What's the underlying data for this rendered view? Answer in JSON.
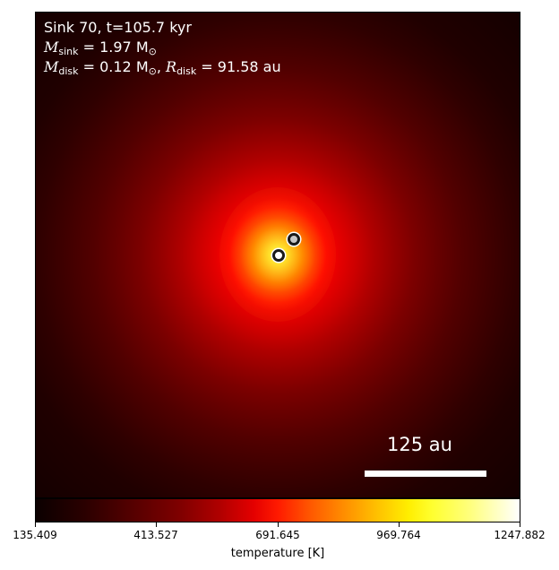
{
  "info": {
    "line1": "Sink 70, t=105.7 kyr",
    "m_sink_symbol": "M",
    "m_sink_sub": "sink",
    "m_sink_value": " = 1.97 M",
    "m_sink_unit_sub": "⊙",
    "m_disk_symbol": "M",
    "m_disk_sub": "disk",
    "m_disk_value": " = 0.12 M",
    "m_disk_unit_sub": "⊙",
    "separator": ", ",
    "r_disk_symbol": "R",
    "r_disk_sub": "disk",
    "r_disk_value": " = 91.58 au"
  },
  "scale": {
    "label": "125 au"
  },
  "colorbar": {
    "colormap": "hot",
    "ticks": [
      "135.409",
      "413.527",
      "691.645",
      "969.764",
      "1247.882"
    ],
    "label": "temperature [K]"
  },
  "colors": {
    "text_on_map": "#ffffff",
    "sink_marker_edge": "#1a1a1a"
  }
}
